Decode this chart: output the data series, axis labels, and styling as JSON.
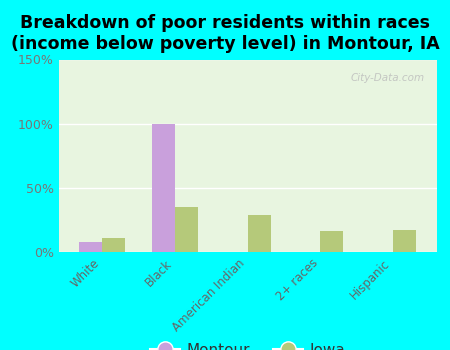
{
  "title": "Breakdown of poor residents within races\n(income below poverty level) in Montour, IA",
  "categories": [
    "White",
    "Black",
    "American Indian",
    "2+ races",
    "Hispanic"
  ],
  "montour_values": [
    8,
    100,
    0,
    0,
    0
  ],
  "iowa_values": [
    11,
    35,
    29,
    16,
    17
  ],
  "montour_color": "#c9a0dc",
  "iowa_color": "#b5c97a",
  "fig_bg_color": "#00ffff",
  "plot_bg_color": "#e8f5e0",
  "watermark": "City-Data.com",
  "ylim": [
    0,
    150
  ],
  "yticks": [
    0,
    50,
    100,
    150
  ],
  "ytick_labels": [
    "0%",
    "50%",
    "100%",
    "150%"
  ],
  "bar_width": 0.32,
  "title_fontsize": 12.5,
  "legend_labels": [
    "Montour",
    "Iowa"
  ]
}
